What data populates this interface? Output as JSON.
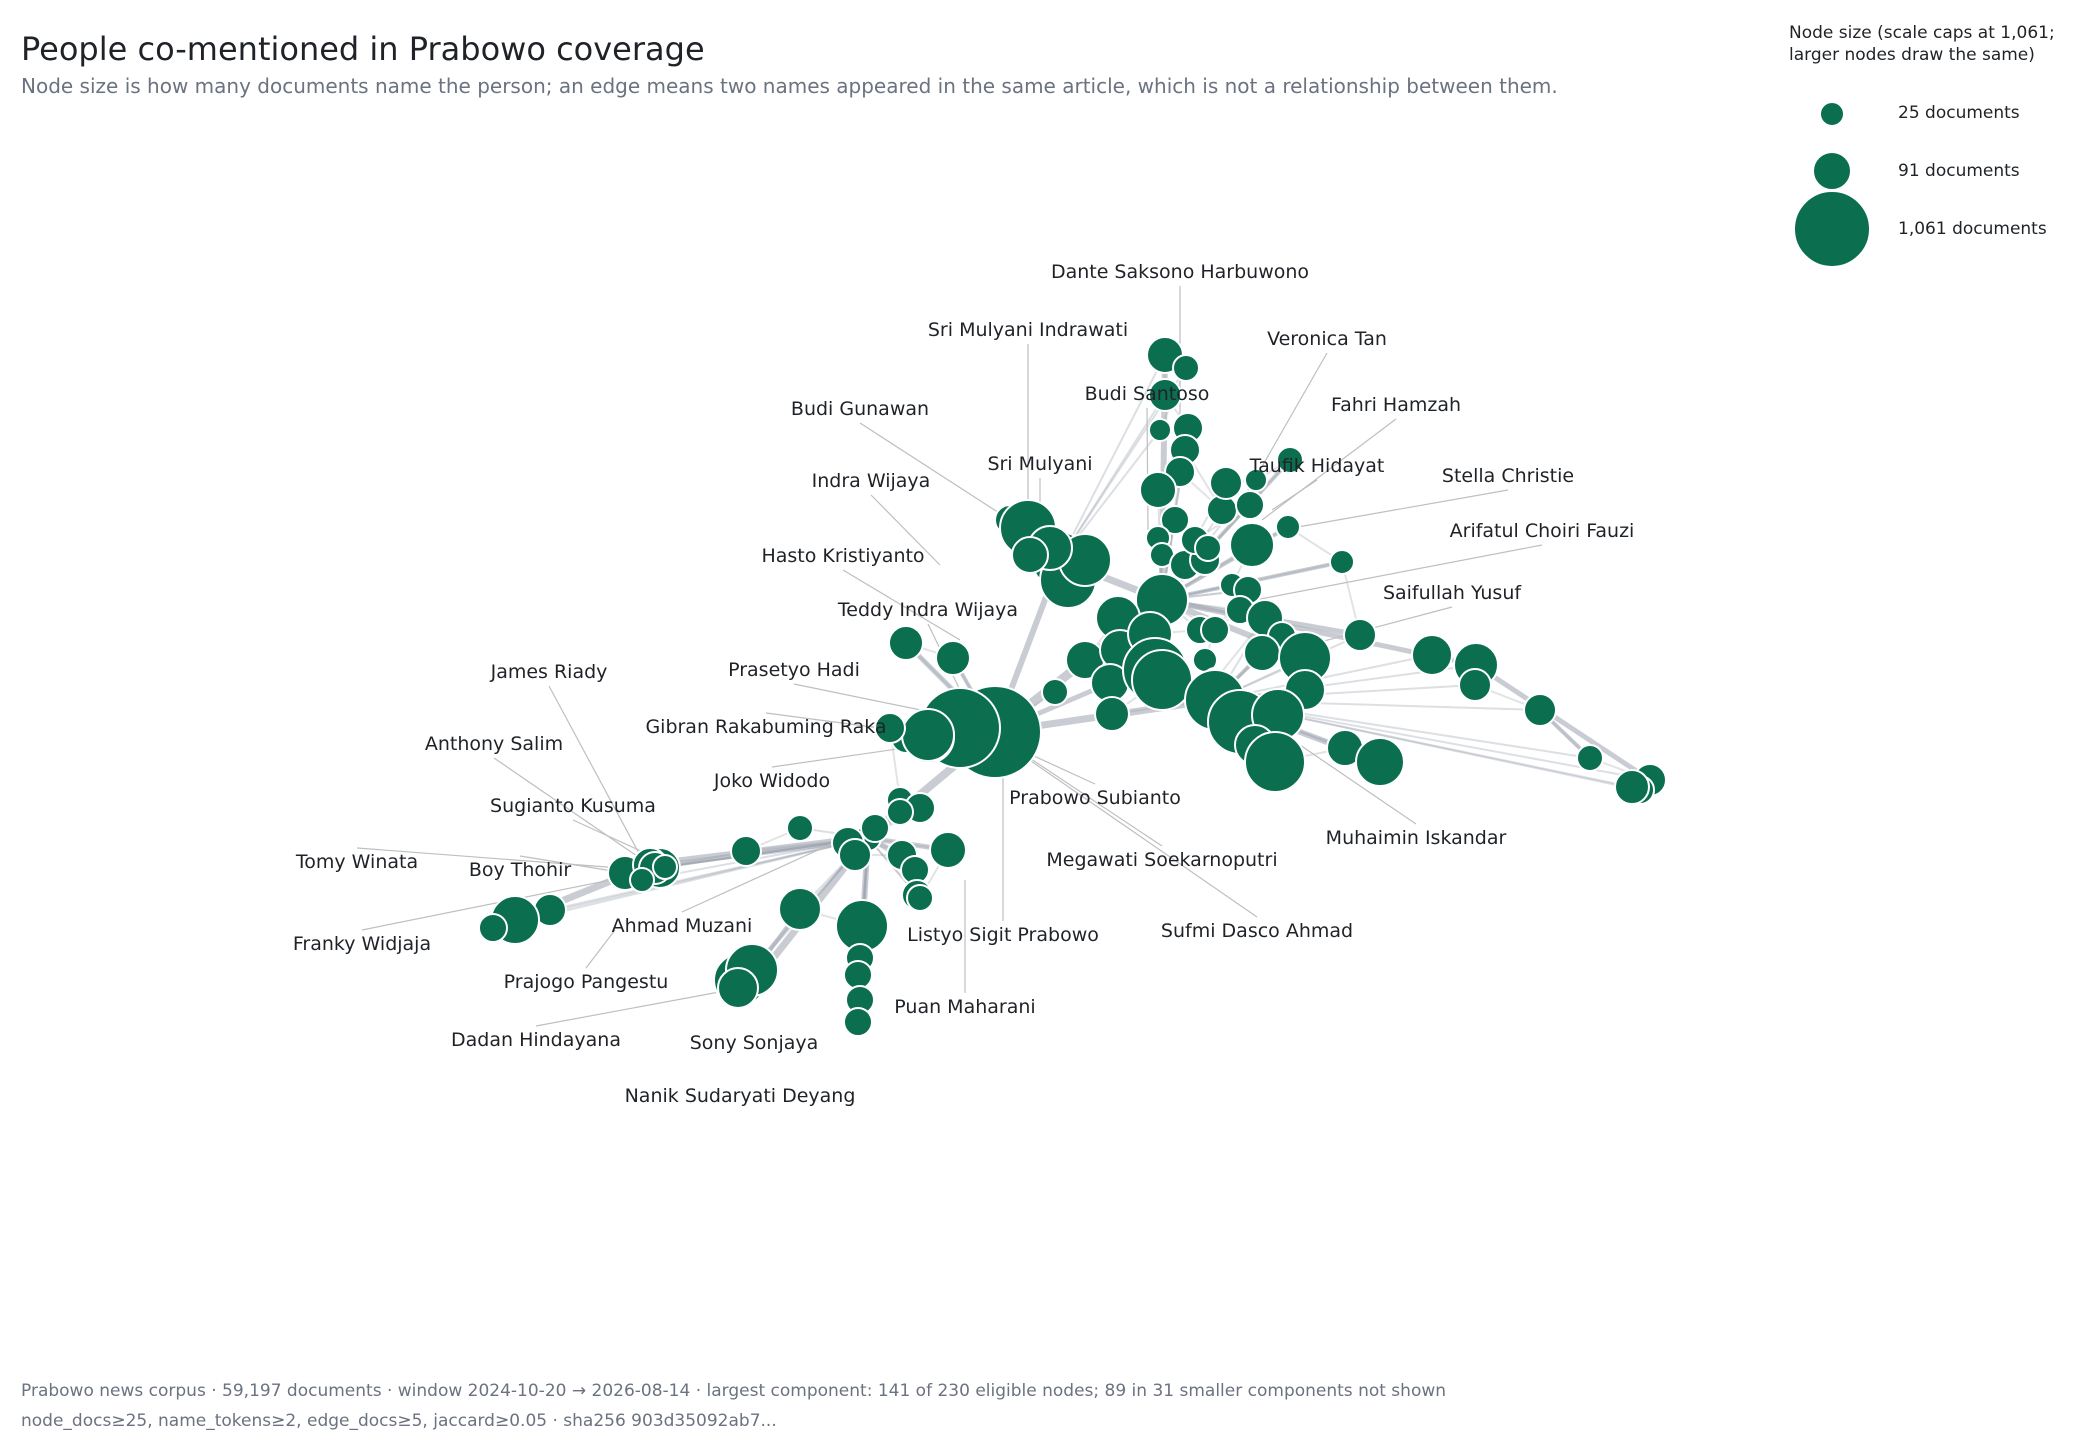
{
  "header": {
    "title": "People co-mentioned in Prabowo coverage",
    "subtitle": "Node size is how many documents name the person; an edge means two names appeared in the same article, which is not a relationship between them."
  },
  "legend": {
    "title_line1": "Node size (scale caps at 1,061;",
    "title_line2": "larger nodes draw the same)",
    "items": [
      {
        "label": "25 documents",
        "docs": 25
      },
      {
        "label": "91 documents",
        "docs": 91
      },
      {
        "label": "1,061 documents",
        "docs": 1061
      }
    ]
  },
  "footer": {
    "line1": "Prabowo news corpus · 59,197 documents · window 2024-10-20 → 2026-08-14 · largest component: 141 of 230 eligible nodes; 89 in 31 smaller components not shown",
    "line2": "node_docs≥25, name_tokens≥2, edge_docs≥5, jaccard≥0.05 · sha256 903d35092ab7..."
  },
  "colors": {
    "node": "#0b6e4f",
    "edge": "#9ca3af",
    "leader": "#bfbfbf"
  },
  "labels": [
    "Dante Saksono Harbuwono",
    "Sri Mulyani Indrawati",
    "Veronica Tan",
    "Budi Santoso",
    "Fahri Hamzah",
    "Budi Gunawan",
    "Sri Mulyani",
    "Taufik Hidayat",
    "Stella Christie",
    "Indra Wijaya",
    "Arifatul Choiri Fauzi",
    "Hasto Kristiyanto",
    "Saifullah Yusuf",
    "Teddy Indra Wijaya",
    "Prasetyo Hadi",
    "James Riady",
    "Gibran Rakabuming Raka",
    "Anthony Salim",
    "Joko Widodo",
    "Prabowo Subianto",
    "Sugianto Kusuma",
    "Muhaimin Iskandar",
    "Megawati Soekarnoputri",
    "Tomy Winata",
    "Boy Thohir",
    "Ahmad Muzani",
    "Listyo Sigit Prabowo",
    "Sufmi Dasco Ahmad",
    "Franky Widjaja",
    "Prajogo Pangestu",
    "Puan Maharani",
    "Dadan Hindayana",
    "Sony Sonjaya",
    "Nanik Sudaryati Deyang"
  ]
}
